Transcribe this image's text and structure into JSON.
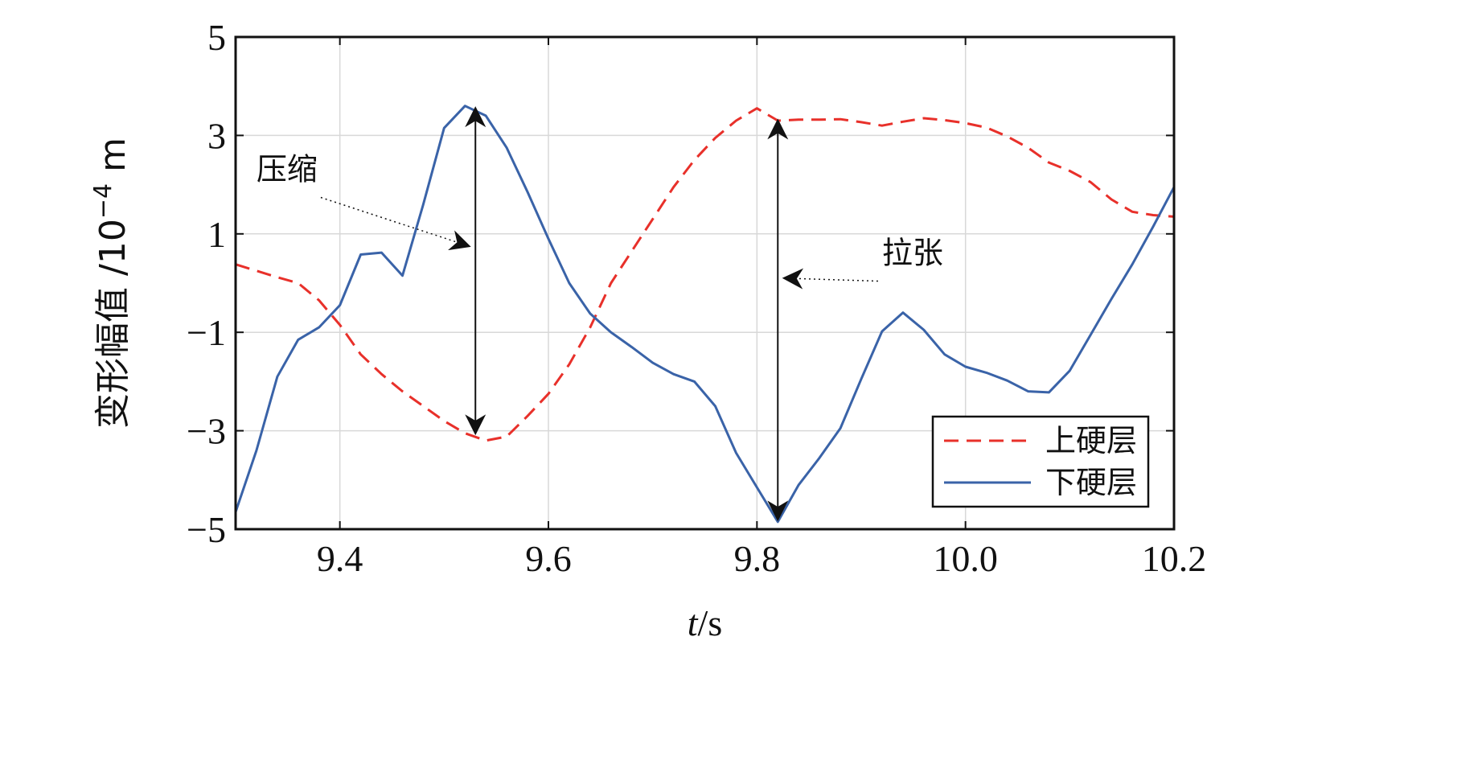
{
  "chart_data": {
    "type": "line",
    "xlabel_italic": "t",
    "xlabel_unit": "/s",
    "ylabel": "变形幅值 /10",
    "ylabel_exp": "−4",
    "ylabel_unit": " m",
    "xlim": [
      9.3,
      10.2
    ],
    "ylim": [
      -5,
      5
    ],
    "xticks": [
      9.4,
      9.6,
      9.8,
      10.0,
      10.2
    ],
    "xtick_labels": [
      "9.4",
      "9.6",
      "9.8",
      "10.0",
      "10.2"
    ],
    "yticks": [
      5,
      3,
      1,
      -1,
      -3,
      -5
    ],
    "ytick_labels": [
      "5",
      "3",
      "1",
      "−1",
      "−3",
      "−5"
    ],
    "grid": true,
    "legend_position": "bottom-right",
    "series": [
      {
        "name": "上硬层",
        "color": "#e8302a",
        "dash": "dashed",
        "x": [
          9.3,
          9.32,
          9.34,
          9.36,
          9.38,
          9.4,
          9.42,
          9.44,
          9.46,
          9.48,
          9.5,
          9.52,
          9.54,
          9.56,
          9.58,
          9.6,
          9.62,
          9.64,
          9.66,
          9.68,
          9.7,
          9.72,
          9.74,
          9.76,
          9.78,
          9.8,
          9.82,
          9.84,
          9.86,
          9.88,
          9.9,
          9.92,
          9.94,
          9.96,
          9.98,
          10.0,
          10.02,
          10.04,
          10.06,
          10.08,
          10.1,
          10.12,
          10.14,
          10.16,
          10.18,
          10.2
        ],
        "y": [
          0.38,
          0.25,
          0.12,
          0.0,
          -0.35,
          -0.85,
          -1.45,
          -1.85,
          -2.2,
          -2.5,
          -2.8,
          -3.05,
          -3.2,
          -3.12,
          -2.7,
          -2.25,
          -1.65,
          -0.9,
          0.0,
          0.65,
          1.3,
          1.95,
          2.5,
          2.95,
          3.3,
          3.55,
          3.3,
          3.32,
          3.32,
          3.33,
          3.27,
          3.2,
          3.28,
          3.35,
          3.31,
          3.25,
          3.16,
          2.98,
          2.75,
          2.45,
          2.28,
          2.05,
          1.7,
          1.45,
          1.38,
          1.35
        ]
      },
      {
        "name": "下硬层",
        "color": "#3a63a8",
        "dash": "solid",
        "x": [
          9.3,
          9.32,
          9.34,
          9.36,
          9.38,
          9.4,
          9.42,
          9.44,
          9.46,
          9.48,
          9.5,
          9.52,
          9.54,
          9.56,
          9.58,
          9.6,
          9.62,
          9.64,
          9.66,
          9.68,
          9.7,
          9.72,
          9.74,
          9.76,
          9.78,
          9.8,
          9.82,
          9.84,
          9.86,
          9.88,
          9.9,
          9.92,
          9.94,
          9.96,
          9.98,
          10.0,
          10.02,
          10.04,
          10.06,
          10.08,
          10.1,
          10.12,
          10.14,
          10.16,
          10.18,
          10.2
        ],
        "y": [
          -4.65,
          -3.4,
          -1.9,
          -1.15,
          -0.9,
          -0.45,
          0.58,
          0.62,
          0.15,
          1.6,
          3.15,
          3.6,
          3.4,
          2.75,
          1.85,
          0.9,
          0.0,
          -0.62,
          -1.0,
          -1.3,
          -1.62,
          -1.85,
          -2.0,
          -2.5,
          -3.45,
          -4.15,
          -4.85,
          -4.1,
          -3.55,
          -2.95,
          -1.95,
          -0.98,
          -0.6,
          -0.95,
          -1.45,
          -1.7,
          -1.82,
          -1.98,
          -2.2,
          -2.22,
          -1.78,
          -1.05,
          -0.32,
          0.38,
          1.15,
          1.95
        ]
      }
    ],
    "annotations": [
      {
        "text": "压缩",
        "type": "compression",
        "arrow_x": 9.53,
        "arrow_from": -3.05,
        "arrow_to": 3.55,
        "label_x": 9.32,
        "label_y": 2.1,
        "pointer_x": 9.53,
        "pointer_y": 0.75
      },
      {
        "text": "拉张",
        "type": "tension",
        "arrow_x": 9.82,
        "arrow_from": 3.3,
        "arrow_to": -4.8,
        "label_x": 9.92,
        "label_y": 0.4,
        "pointer_x": 9.82,
        "pointer_y": 0.1
      }
    ]
  }
}
